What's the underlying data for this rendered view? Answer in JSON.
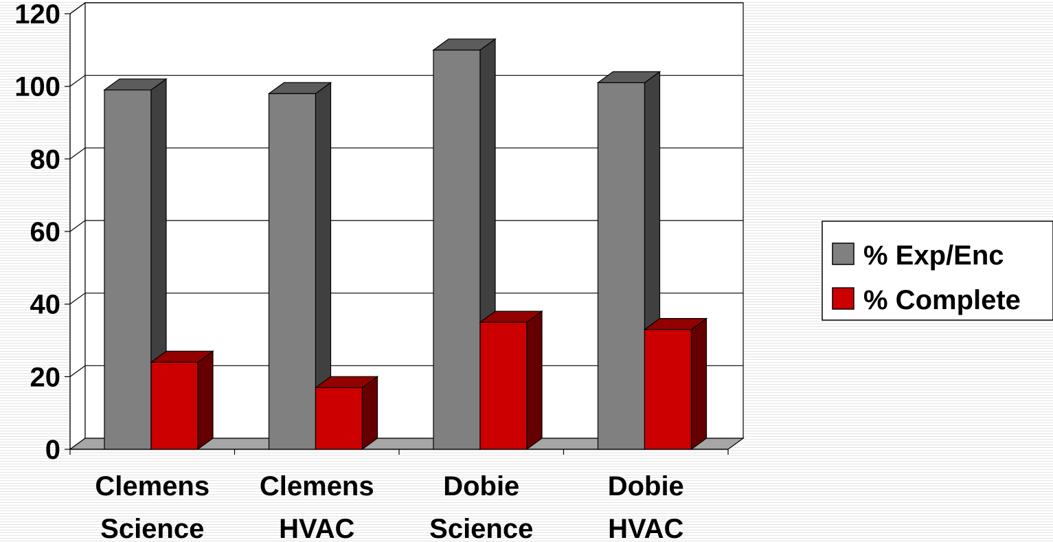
{
  "chart_data": {
    "type": "bar",
    "style": "3d-clustered-column",
    "categories": [
      [
        "Clemens",
        "Science"
      ],
      [
        "Clemens",
        "HVAC"
      ],
      [
        "Dobie",
        "Science"
      ],
      [
        "Dobie",
        "HVAC"
      ]
    ],
    "series": [
      {
        "name": "% Exp/Enc",
        "color": "#808080",
        "values": [
          99,
          98,
          110,
          101
        ]
      },
      {
        "name": "% Complete",
        "color": "#cc0000",
        "values": [
          24,
          17,
          35,
          33
        ]
      }
    ],
    "yticks": [
      "0",
      "20",
      "40",
      "60",
      "80",
      "100",
      "120"
    ],
    "ylim": [
      0,
      120
    ],
    "grid": true,
    "legend_position": "right",
    "title": "",
    "xlabel": "",
    "ylabel": ""
  }
}
